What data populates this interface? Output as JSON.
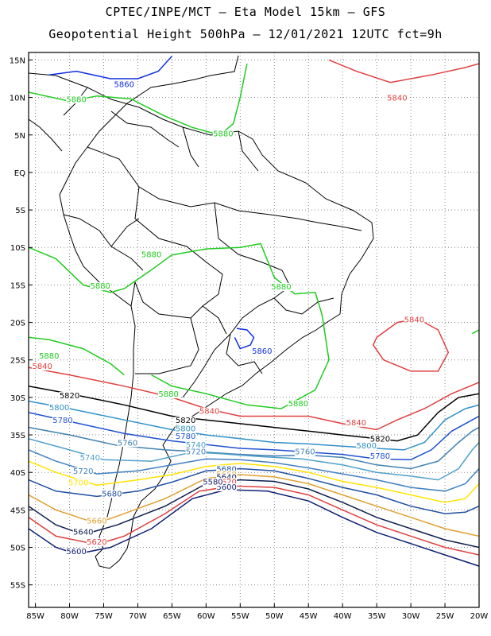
{
  "header": {
    "line1": "CPTEC/INPE/MCT –  Eta Model 15km – GFS",
    "line2": "Geopotential Height 500hPa – 12/01/2021 12UTC fct=9h"
  },
  "axes": {
    "lat_labels": [
      "15N",
      "10N",
      "5N",
      "EQ",
      "5S",
      "10S",
      "15S",
      "20S",
      "25S",
      "30S",
      "35S",
      "40S",
      "45S",
      "50S",
      "55S"
    ],
    "lat_values": [
      15,
      10,
      5,
      0,
      -5,
      -10,
      -15,
      -20,
      -25,
      -30,
      -35,
      -40,
      -45,
      -50,
      -55
    ],
    "lon_labels": [
      "85W",
      "80W",
      "75W",
      "70W",
      "65W",
      "60W",
      "55W",
      "50W",
      "45W",
      "40W",
      "35W",
      "30W",
      "25W",
      "20W"
    ],
    "lon_values": [
      -85,
      -80,
      -75,
      -70,
      -65,
      -60,
      -55,
      -50,
      -45,
      -40,
      -35,
      -30,
      -25,
      -20
    ],
    "lon_range": [
      -86,
      -20
    ],
    "lat_range": [
      -58,
      16
    ],
    "grid": "dotted"
  },
  "contour_levels": {
    "unit": "gpm",
    "values": [
      5580,
      5600,
      5620,
      5640,
      5660,
      5680,
      5700,
      5720,
      5740,
      5760,
      5780,
      5800,
      5820,
      5840,
      5860,
      5880
    ],
    "colors": {
      "5580": "#1a1a66",
      "5600": "#0f1f73",
      "5620": "#e04040",
      "5640": "#0e1e4e",
      "5660": "#e0a030",
      "5680": "#2050a0",
      "5700": "#ffe400",
      "5720": "#4080c0",
      "5740": "#50a0c8",
      "5760": "#4080b0",
      "5780": "#1e50d0",
      "5800": "#3090c8",
      "5820": "#000000",
      "5840": "#e04040",
      "5860": "#1030e0",
      "5880": "#20cc20"
    }
  },
  "contour_labels": [
    {
      "text": "5860",
      "color": "#1030e0",
      "lon": -72,
      "lat": 11.4
    },
    {
      "text": "5840",
      "color": "#e04040",
      "lon": -32,
      "lat": 9.6
    },
    {
      "text": "5880",
      "color": "#20cc20",
      "lon": -79,
      "lat": 9.4
    },
    {
      "text": "5880",
      "color": "#20cc20",
      "lon": -57.5,
      "lat": 4.8
    },
    {
      "text": "5880",
      "color": "#20cc20",
      "lon": -68,
      "lat": -11.3
    },
    {
      "text": "5880",
      "color": "#20cc20",
      "lon": -75.5,
      "lat": -15.5
    },
    {
      "text": "5880",
      "color": "#20cc20",
      "lon": -49,
      "lat": -15.6
    },
    {
      "text": "5840",
      "color": "#e04040",
      "lon": -29.5,
      "lat": -20
    },
    {
      "text": "5880",
      "color": "#20cc20",
      "lon": -83,
      "lat": -24.8
    },
    {
      "text": "5860",
      "color": "#1030e0",
      "lon": -51.8,
      "lat": -24.2
    },
    {
      "text": "5840",
      "color": "#e04040",
      "lon": -84,
      "lat": -26.2
    },
    {
      "text": "5880",
      "color": "#20cc20",
      "lon": -65.5,
      "lat": -29.9
    },
    {
      "text": "5880",
      "color": "#20cc20",
      "lon": -46.5,
      "lat": -31.2
    },
    {
      "text": "5820",
      "color": "#000000",
      "lon": -80,
      "lat": -30.1
    },
    {
      "text": "5800",
      "color": "#3090c8",
      "lon": -81.5,
      "lat": -31.7
    },
    {
      "text": "5840",
      "color": "#e04040",
      "lon": -59.5,
      "lat": -32.2
    },
    {
      "text": "5780",
      "color": "#1e50d0",
      "lon": -81,
      "lat": -33.4
    },
    {
      "text": "5820",
      "color": "#000000",
      "lon": -63,
      "lat": -33.4
    },
    {
      "text": "5840",
      "color": "#e04040",
      "lon": -38,
      "lat": -33.7
    },
    {
      "text": "5800",
      "color": "#3090c8",
      "lon": -63,
      "lat": -34.5
    },
    {
      "text": "5780",
      "color": "#1e50d0",
      "lon": -63,
      "lat": -35.5
    },
    {
      "text": "5820",
      "color": "#000000",
      "lon": -34.5,
      "lat": -35.9
    },
    {
      "text": "5760",
      "color": "#4080b0",
      "lon": -71.5,
      "lat": -36.4
    },
    {
      "text": "5740",
      "color": "#50a0c8",
      "lon": -61.5,
      "lat": -36.7
    },
    {
      "text": "5720",
      "color": "#4080c0",
      "lon": -61.5,
      "lat": -37.6
    },
    {
      "text": "5800",
      "color": "#3090c8",
      "lon": -36.5,
      "lat": -36.8
    },
    {
      "text": "5760",
      "color": "#4080b0",
      "lon": -45.5,
      "lat": -37.6
    },
    {
      "text": "5780",
      "color": "#1e50d0",
      "lon": -34.5,
      "lat": -38.2
    },
    {
      "text": "5740",
      "color": "#50a0c8",
      "lon": -77,
      "lat": -38.4
    },
    {
      "text": "5720",
      "color": "#4080c0",
      "lon": -78,
      "lat": -40.2
    },
    {
      "text": "5700",
      "color": "#ffe400",
      "lon": -78.7,
      "lat": -41.7
    },
    {
      "text": "5680",
      "color": "#2050a0",
      "lon": -57,
      "lat": -39.9
    },
    {
      "text": "5660",
      "color": "#e0a030",
      "lon": -57,
      "lat": -40.6
    },
    {
      "text": "5640",
      "color": "#0e1e4e",
      "lon": -57,
      "lat": -41
    },
    {
      "text": "5620",
      "color": "#e04040",
      "lon": -57,
      "lat": -41.6
    },
    {
      "text": "5600",
      "color": "#0f1f73",
      "lon": -57,
      "lat": -42.3
    },
    {
      "text": "5580",
      "color": "#1a1a66",
      "lon": -59,
      "lat": -41.6
    },
    {
      "text": "5680",
      "color": "#2050a0",
      "lon": -73.8,
      "lat": -43.2
    },
    {
      "text": "5660",
      "color": "#e0a030",
      "lon": -76,
      "lat": -46.8
    },
    {
      "text": "5640",
      "color": "#0e1e4e",
      "lon": -78,
      "lat": -48.3
    },
    {
      "text": "5620",
      "color": "#e04040",
      "lon": -76,
      "lat": -49.6
    },
    {
      "text": "5600",
      "color": "#0f1f73",
      "lon": -79,
      "lat": -50.9
    }
  ]
}
